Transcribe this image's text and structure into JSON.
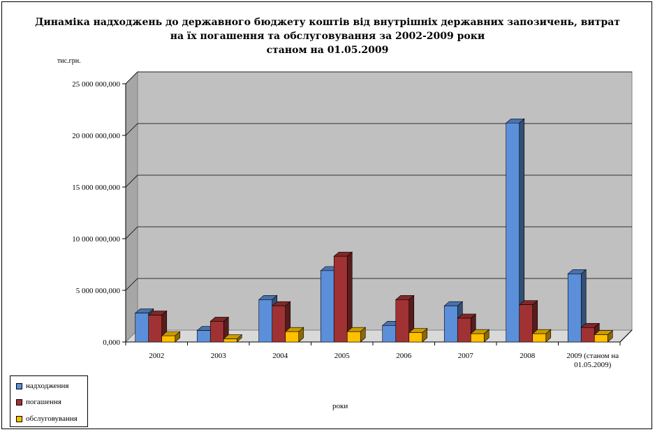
{
  "title_lines": [
    "Динаміка надходжень до державного бюджету коштів від внутрішніх державних запозичень, витрат",
    "на їх погашення та обслуговування за 2002-2009 роки",
    "станом на 01.05.2009"
  ],
  "unit_label": "тис.грн.",
  "chart_data": {
    "type": "bar",
    "title": "Динаміка надходжень до державного бюджету коштів від внутрішніх державних запозичень, витрат на їх погашення та обслуговування за 2002-2009 роки станом на 01.05.2009",
    "xlabel": "роки",
    "ylabel": "тис.грн.",
    "categories": [
      "2002",
      "2003",
      "2004",
      "2005",
      "2006",
      "2007",
      "2008",
      "2009  (станом на 01.05.2009)"
    ],
    "category_lines": [
      [
        "2002"
      ],
      [
        "2003"
      ],
      [
        "2004"
      ],
      [
        "2005"
      ],
      [
        "2006"
      ],
      [
        "2007"
      ],
      [
        "2008"
      ],
      [
        "2009  (станом на",
        "01.05.2009)"
      ]
    ],
    "series": [
      {
        "name": "надходження",
        "color": "#5b8fd9",
        "values": [
          2800000000,
          1100000000,
          4100000000,
          6900000000,
          1600000000,
          3500000000,
          21200000000,
          6600000000
        ]
      },
      {
        "name": "погашення",
        "color": "#a03233",
        "values": [
          2600000000,
          2000000000,
          3500000000,
          8300000000,
          4100000000,
          2300000000,
          3600000000,
          1400000000
        ]
      },
      {
        "name": "обслуговування",
        "color": "#ffc000",
        "values": [
          600000000,
          300000000,
          1000000000,
          1000000000,
          900000000,
          800000000,
          800000000,
          700000000
        ]
      }
    ],
    "ylim": [
      0,
      25000000000
    ],
    "yticks": [
      "0,000",
      "5 000 000,000",
      "10 000 000,000",
      "15 000 000,000",
      "20 000 000,000",
      "25 000 000,000"
    ],
    "grid": true,
    "legend_position": "bottom-left"
  }
}
